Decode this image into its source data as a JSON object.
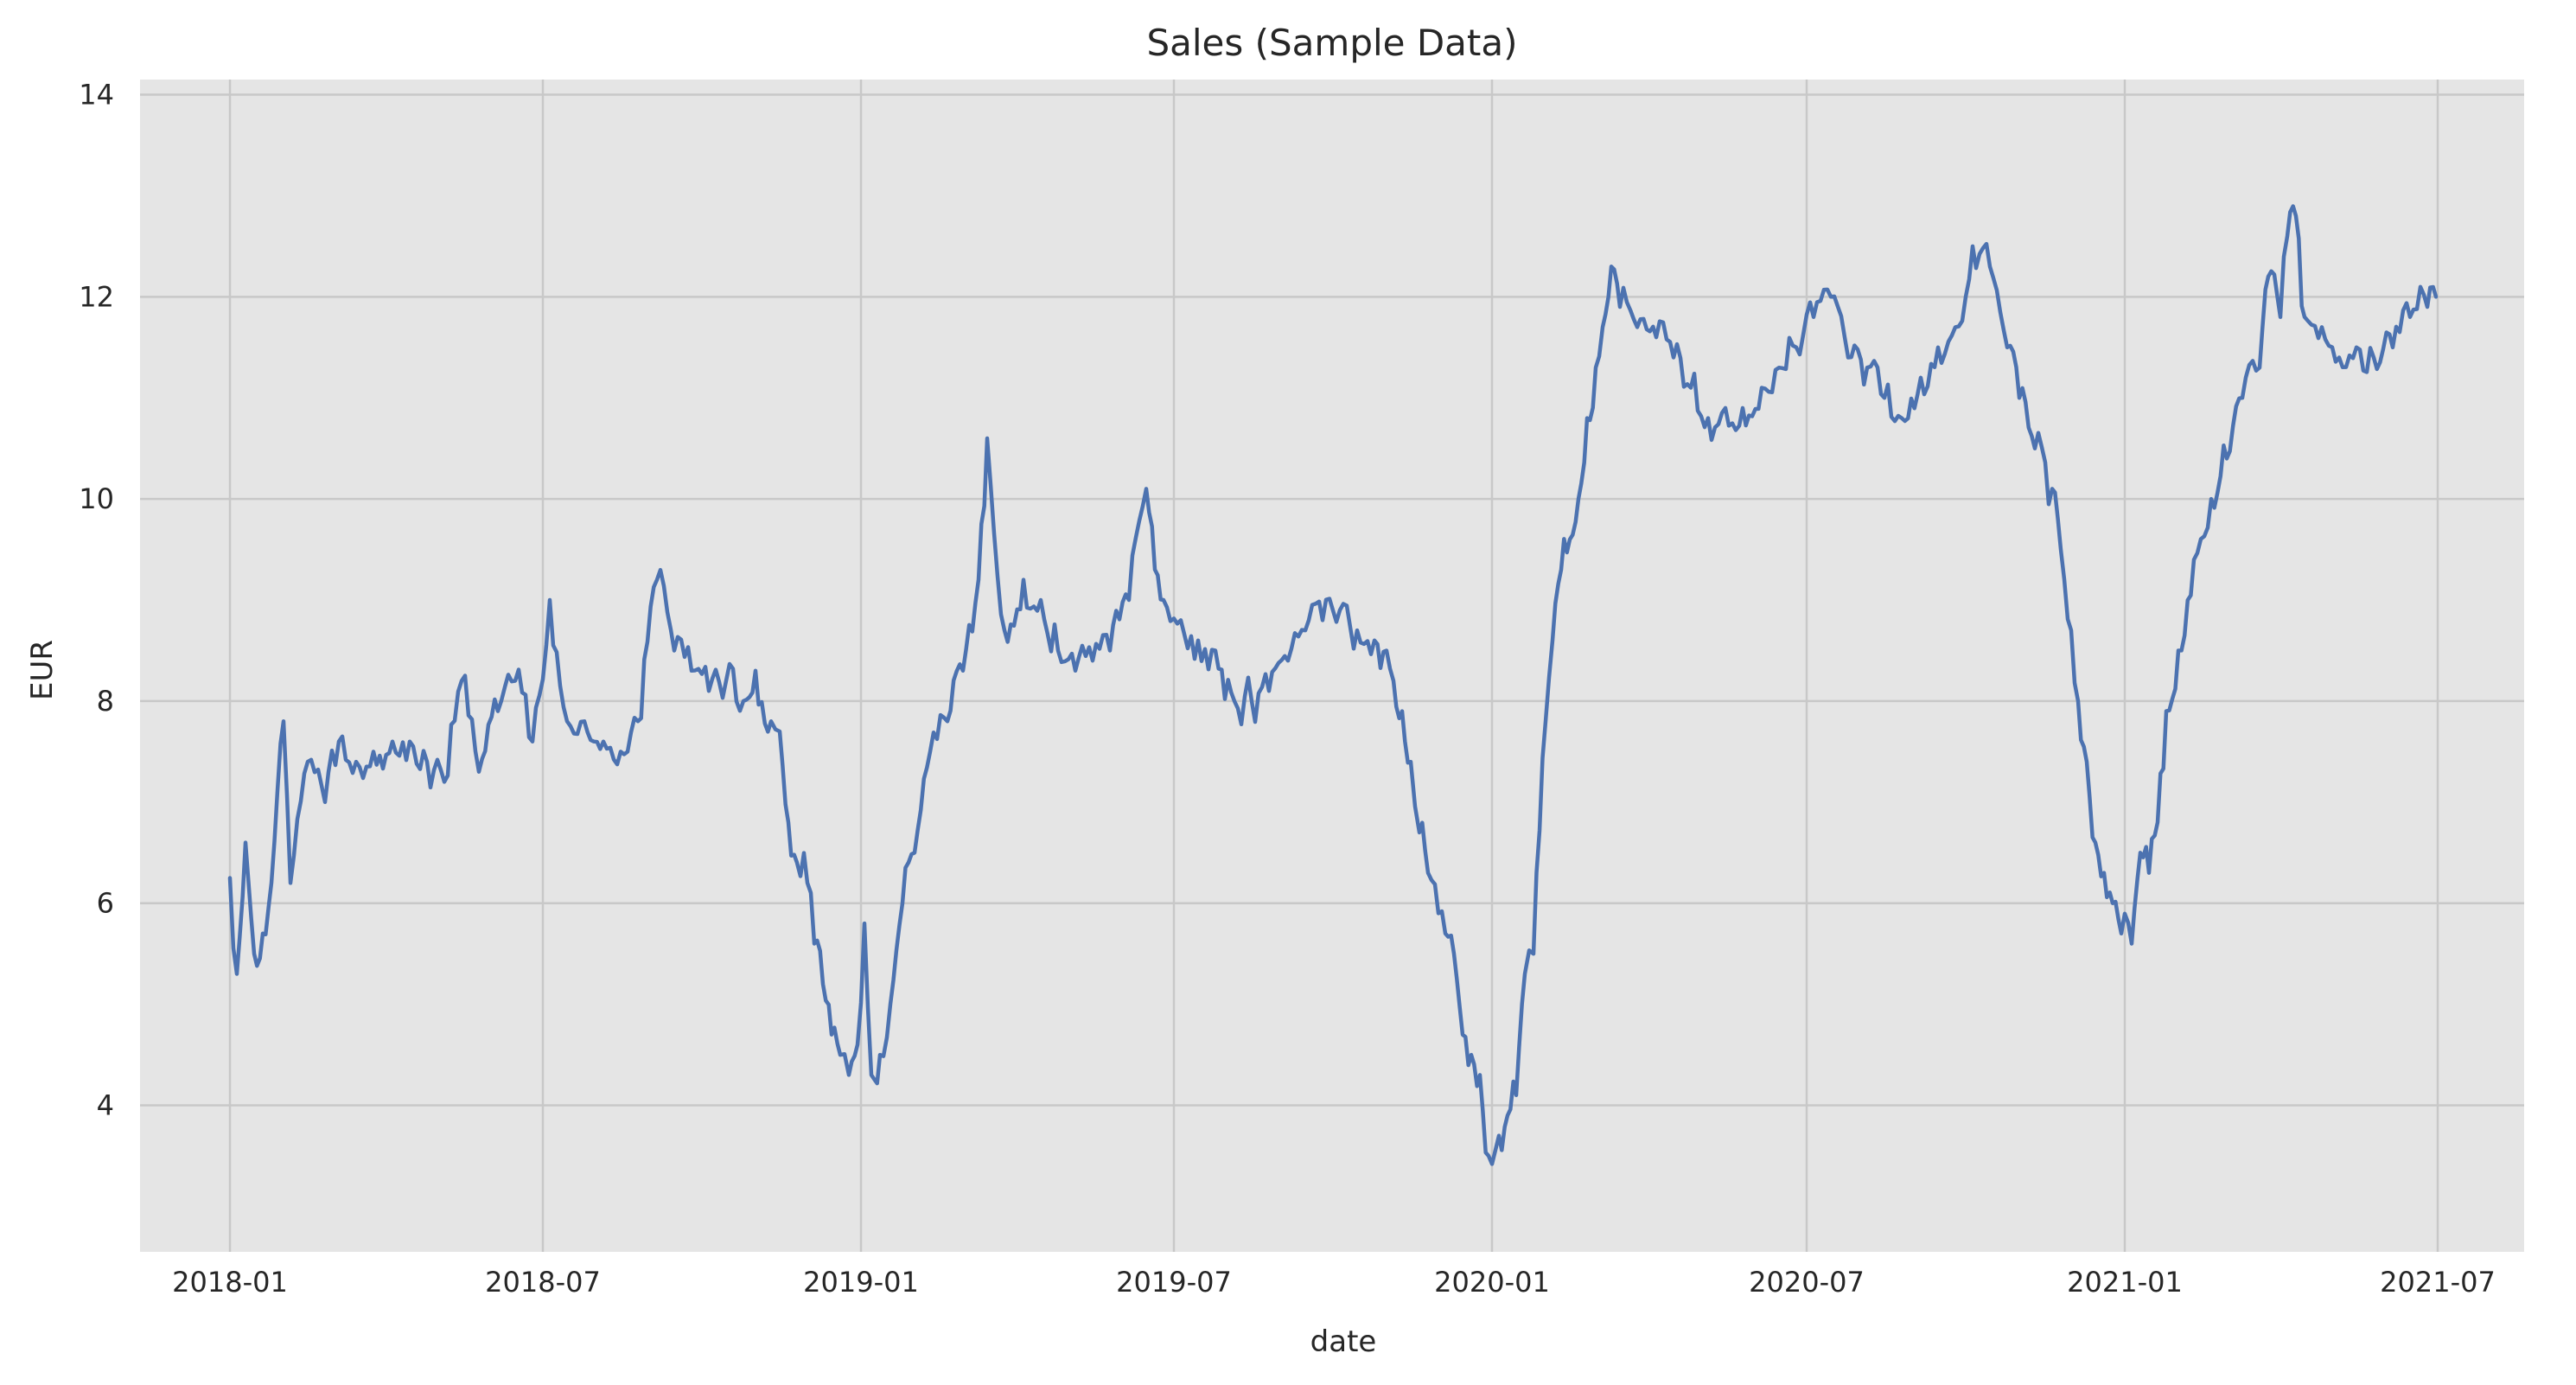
{
  "chart_data": {
    "type": "line",
    "title": "Sales (Sample Data)",
    "xlabel": "date",
    "ylabel": "EUR",
    "x_ticks": [
      "2018-01",
      "2018-07",
      "2019-01",
      "2019-07",
      "2020-01",
      "2020-07",
      "2021-01",
      "2021-07"
    ],
    "y_ticks": [
      4,
      6,
      8,
      10,
      12,
      14
    ],
    "xlim": [
      "2017-11-10",
      "2021-08-20"
    ],
    "ylim": [
      2.55,
      14.15
    ],
    "grid": true,
    "background_color": "#e5e5e5",
    "series": [
      {
        "color": "#4c72b0",
        "x": [
          "2018-01-01",
          "2018-01-05",
          "2018-01-10",
          "2018-01-15",
          "2018-01-20",
          "2018-01-25",
          "2018-02-01",
          "2018-02-05",
          "2018-02-15",
          "2018-02-25",
          "2018-03-05",
          "2018-03-15",
          "2018-03-25",
          "2018-04-05",
          "2018-04-15",
          "2018-04-25",
          "2018-05-05",
          "2018-05-15",
          "2018-05-25",
          "2018-06-05",
          "2018-06-15",
          "2018-06-25",
          "2018-07-05",
          "2018-07-15",
          "2018-07-25",
          "2018-08-05",
          "2018-08-15",
          "2018-08-25",
          "2018-09-05",
          "2018-09-15",
          "2018-09-25",
          "2018-10-05",
          "2018-10-15",
          "2018-10-25",
          "2018-11-01",
          "2018-11-10",
          "2018-11-15",
          "2018-11-20",
          "2018-11-25",
          "2018-12-01",
          "2018-12-05",
          "2018-12-10",
          "2018-12-15",
          "2018-12-20",
          "2018-12-25",
          "2018-12-30",
          "2019-01-03",
          "2019-01-07",
          "2019-01-12",
          "2019-01-18",
          "2019-01-25",
          "2019-02-01",
          "2019-02-10",
          "2019-02-20",
          "2019-03-01",
          "2019-03-10",
          "2019-03-15",
          "2019-03-25",
          "2019-04-05",
          "2019-04-15",
          "2019-04-25",
          "2019-05-05",
          "2019-05-15",
          "2019-05-25",
          "2019-06-05",
          "2019-06-15",
          "2019-06-20",
          "2019-06-25",
          "2019-07-05",
          "2019-07-15",
          "2019-07-25",
          "2019-08-05",
          "2019-08-15",
          "2019-08-25",
          "2019-09-05",
          "2019-09-15",
          "2019-09-25",
          "2019-10-05",
          "2019-10-15",
          "2019-10-25",
          "2019-11-01",
          "2019-11-05",
          "2019-11-10",
          "2019-11-15",
          "2019-11-20",
          "2019-11-25",
          "2019-12-01",
          "2019-12-05",
          "2019-12-10",
          "2019-12-15",
          "2019-12-20",
          "2019-12-25",
          "2019-12-30",
          "2020-01-05",
          "2020-01-10",
          "2020-01-15",
          "2020-01-20",
          "2020-01-25",
          "2020-02-01",
          "2020-02-05",
          "2020-02-10",
          "2020-02-15",
          "2020-02-20",
          "2020-02-25",
          "2020-03-01",
          "2020-03-05",
          "2020-03-10",
          "2020-03-15",
          "2020-03-25",
          "2020-04-05",
          "2020-04-15",
          "2020-04-25",
          "2020-05-05",
          "2020-05-15",
          "2020-05-25",
          "2020-06-05",
          "2020-06-15",
          "2020-06-25",
          "2020-07-05",
          "2020-07-15",
          "2020-07-25",
          "2020-08-05",
          "2020-08-15",
          "2020-08-25",
          "2020-09-05",
          "2020-09-15",
          "2020-09-25",
          "2020-10-01",
          "2020-10-05",
          "2020-10-15",
          "2020-10-25",
          "2020-11-01",
          "2020-11-10",
          "2020-11-20",
          "2020-11-25",
          "2020-12-01",
          "2020-12-05",
          "2020-12-10",
          "2020-12-15",
          "2020-12-20",
          "2020-12-25",
          "2020-12-30",
          "2021-01-05",
          "2021-01-10",
          "2021-01-15",
          "2021-01-20",
          "2021-01-25",
          "2021-02-01",
          "2021-02-10",
          "2021-02-20",
          "2021-03-01",
          "2021-03-10",
          "2021-03-20",
          "2021-03-25",
          "2021-04-01",
          "2021-04-05",
          "2021-04-10",
          "2021-04-15",
          "2021-04-25",
          "2021-05-05",
          "2021-05-15",
          "2021-05-25",
          "2021-06-05",
          "2021-06-15",
          "2021-06-25",
          "2021-06-30"
        ],
        "y": [
          6.25,
          5.3,
          6.6,
          5.5,
          5.7,
          6.2,
          7.8,
          6.2,
          7.4,
          7.0,
          7.6,
          7.4,
          7.5,
          7.6,
          7.6,
          7.4,
          7.2,
          8.2,
          7.3,
          7.9,
          8.2,
          7.6,
          9.0,
          7.8,
          7.8,
          7.6,
          7.5,
          7.8,
          9.2,
          8.5,
          8.3,
          8.1,
          8.2,
          8.0,
          8.3,
          7.8,
          7.7,
          6.8,
          6.4,
          6.2,
          5.6,
          5.2,
          4.7,
          4.5,
          4.3,
          4.6,
          5.8,
          4.3,
          4.5,
          5.0,
          6.0,
          6.5,
          7.5,
          7.8,
          8.3,
          9.2,
          10.6,
          8.7,
          9.2,
          9.0,
          8.5,
          8.3,
          8.4,
          8.5,
          9.0,
          10.1,
          9.3,
          9.0,
          8.8,
          8.6,
          8.5,
          8.0,
          8.0,
          8.1,
          8.4,
          8.7,
          8.8,
          8.9,
          8.7,
          8.6,
          8.5,
          8.2,
          7.9,
          7.4,
          6.7,
          6.3,
          5.9,
          5.7,
          5.5,
          4.7,
          4.5,
          4.3,
          3.5,
          3.7,
          3.9,
          4.1,
          5.3,
          5.5,
          7.8,
          8.6,
          9.3,
          9.6,
          10.0,
          10.8,
          11.3,
          11.7,
          12.3,
          11.9,
          11.7,
          11.6,
          11.4,
          11.1,
          10.8,
          10.9,
          10.9,
          11.1,
          11.3,
          11.5,
          11.8,
          12.0,
          11.4,
          11.3,
          11.0,
          10.8,
          11.2,
          11.5,
          11.7,
          12.0,
          12.5,
          12.3,
          11.5,
          11.0,
          10.5,
          10.1,
          9.5,
          8.7,
          8.0,
          7.4,
          6.6,
          6.3,
          6.0,
          5.7,
          5.6,
          6.5,
          6.3,
          6.8,
          7.9,
          8.5,
          9.4,
          10.0,
          10.4,
          11.0,
          11.3,
          12.2,
          11.8,
          12.6,
          12.8,
          11.8,
          11.7,
          11.4,
          11.5,
          11.4,
          11.5,
          11.8,
          11.9,
          12.0
        ]
      }
    ]
  }
}
